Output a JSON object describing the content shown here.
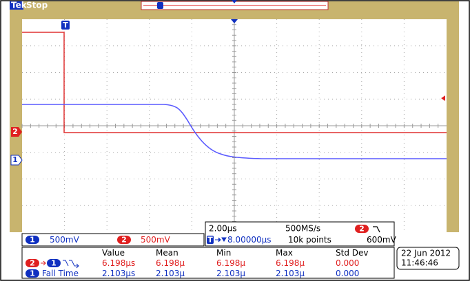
{
  "status_bar": {
    "brand": "Tek",
    "state": "Stop"
  },
  "markers": {
    "trigger": "T",
    "ch2": "2",
    "ch1": "1"
  },
  "channels": [
    {
      "number": "1",
      "scale": "500mV"
    },
    {
      "number": "2",
      "scale": "500mV"
    }
  ],
  "timebase": {
    "scale": "2.00µs",
    "sample_rate": "500MS/s",
    "trigger_channel": "2",
    "trigger_marker": "T",
    "trigger_position": "8.00000µs",
    "record_length": "10k points",
    "trigger_level": "600mV"
  },
  "measurements": {
    "headers": [
      "Value",
      "Mean",
      "Min",
      "Max",
      "Std Dev"
    ],
    "rows": [
      {
        "from_channel": "2",
        "to_channel": "1",
        "values": [
          "6.198µs",
          "6.198µ",
          "6.198µ",
          "6.198µ",
          "0.000"
        ]
      },
      {
        "channel": "1",
        "label": "Fall Time",
        "values": [
          "2.103µs",
          "2.103µ",
          "2.103µ",
          "2.103µ",
          "0.000"
        ]
      }
    ]
  },
  "clock": {
    "date": "22 Jun 2012",
    "time": "11:46:46"
  }
}
